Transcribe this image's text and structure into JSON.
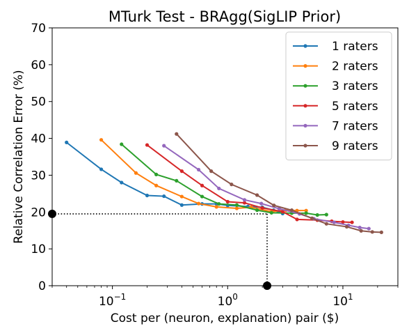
{
  "chart_data": {
    "type": "line",
    "title": "MTurk Test - BRAgg(SigLIP Prior)",
    "xlabel": "Cost per (neuron, explanation) pair ($)",
    "ylabel": "Relative Correlation Error (%)",
    "xscale": "log",
    "xlim": [
      0.03,
      30
    ],
    "ylim": [
      0,
      70
    ],
    "yticks": [
      "0",
      "10",
      "20",
      "30",
      "40",
      "50",
      "60",
      "70"
    ],
    "xticks": [
      {
        "value": 0.1,
        "base": "10",
        "exp": "−1"
      },
      {
        "value": 1,
        "base": "10",
        "exp": "0"
      },
      {
        "value": 10,
        "base": "10",
        "exp": "1"
      }
    ],
    "grid": false,
    "legend_position": "top-right",
    "series": [
      {
        "name": "1 raters",
        "color": "#1f77b4",
        "points": [
          [
            0.04,
            38.9
          ],
          [
            0.08,
            31.6
          ],
          [
            0.12,
            28.0
          ],
          [
            0.2,
            24.5
          ],
          [
            0.28,
            24.3
          ],
          [
            0.4,
            21.9
          ],
          [
            0.6,
            22.2
          ],
          [
            0.8,
            22.2
          ],
          [
            1.0,
            21.8
          ],
          [
            1.5,
            21.5
          ],
          [
            2.0,
            21.3
          ],
          [
            2.5,
            20.5
          ],
          [
            3.0,
            19.6
          ]
        ]
      },
      {
        "name": "2 raters",
        "color": "#ff7f0e",
        "points": [
          [
            0.08,
            39.6
          ],
          [
            0.16,
            30.6
          ],
          [
            0.24,
            27.2
          ],
          [
            0.4,
            24.2
          ],
          [
            0.56,
            22.3
          ],
          [
            0.8,
            21.4
          ],
          [
            1.2,
            21.0
          ],
          [
            1.6,
            21.3
          ],
          [
            2.4,
            20.1
          ],
          [
            3.2,
            20.5
          ],
          [
            4.0,
            20.4
          ],
          [
            4.8,
            20.4
          ]
        ]
      },
      {
        "name": "3 raters",
        "color": "#2ca02c",
        "points": [
          [
            0.12,
            38.4
          ],
          [
            0.24,
            30.2
          ],
          [
            0.36,
            28.5
          ],
          [
            0.6,
            24.2
          ],
          [
            0.84,
            22.2
          ],
          [
            1.2,
            21.9
          ],
          [
            1.8,
            20.5
          ],
          [
            2.4,
            19.8
          ],
          [
            3.6,
            19.7
          ],
          [
            4.8,
            19.7
          ],
          [
            6.0,
            19.2
          ],
          [
            7.2,
            19.3
          ]
        ]
      },
      {
        "name": "5 raters",
        "color": "#d62728",
        "points": [
          [
            0.2,
            38.2
          ],
          [
            0.4,
            31.1
          ],
          [
            0.6,
            27.2
          ],
          [
            1.0,
            22.8
          ],
          [
            1.4,
            22.5
          ],
          [
            2.0,
            21.1
          ],
          [
            3.0,
            20.1
          ],
          [
            4.0,
            18.0
          ],
          [
            6.0,
            17.8
          ],
          [
            8.0,
            17.5
          ],
          [
            10.0,
            17.3
          ],
          [
            12.0,
            17.2
          ]
        ]
      },
      {
        "name": "7 raters",
        "color": "#9467bd",
        "points": [
          [
            0.28,
            38.0
          ],
          [
            0.56,
            31.5
          ],
          [
            0.84,
            26.4
          ],
          [
            1.4,
            23.3
          ],
          [
            1.96,
            22.3
          ],
          [
            2.8,
            20.9
          ],
          [
            4.2,
            19.5
          ],
          [
            5.6,
            18.2
          ],
          [
            8.4,
            17.2
          ],
          [
            11.2,
            16.4
          ],
          [
            14.0,
            15.8
          ],
          [
            16.8,
            15.5
          ]
        ]
      },
      {
        "name": "9 raters",
        "color": "#8c564b",
        "points": [
          [
            0.36,
            41.2
          ],
          [
            0.72,
            31.1
          ],
          [
            1.08,
            27.5
          ],
          [
            1.8,
            24.6
          ],
          [
            2.52,
            21.8
          ],
          [
            3.6,
            20.5
          ],
          [
            5.4,
            18.3
          ],
          [
            7.2,
            16.8
          ],
          [
            10.8,
            16.0
          ],
          [
            14.4,
            14.9
          ],
          [
            18.0,
            14.6
          ],
          [
            21.6,
            14.5
          ]
        ]
      }
    ],
    "reference": {
      "x": 2.2,
      "y": 19.5
    }
  }
}
